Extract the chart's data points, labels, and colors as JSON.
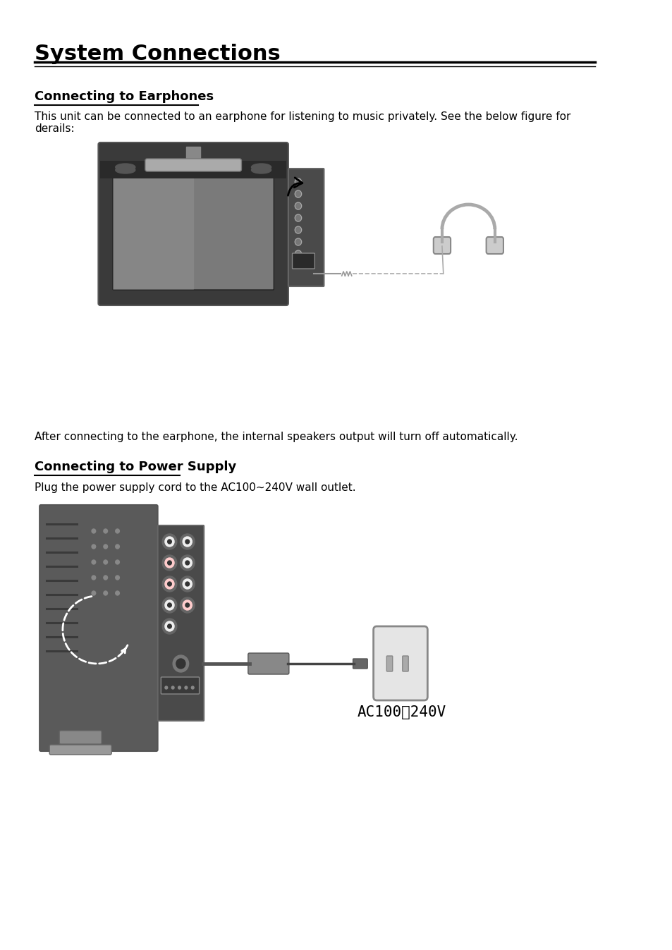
{
  "title": "System Connections",
  "section1_heading": "Connecting to Earphones",
  "section1_body": "This unit can be connected to an earphone for listening to music privately. See the below figure for\nderails:",
  "section1_footer": "After connecting to the earphone, the internal speakers output will turn off automatically.",
  "section2_heading": "Connecting to Power Supply",
  "section2_body": "Plug the power supply cord to the AC100~240V wall outlet.",
  "ac_label": "AC100～240V",
  "bg_color": "#ffffff",
  "text_color": "#000000",
  "title_fontsize": 22,
  "heading_fontsize": 13,
  "body_fontsize": 11
}
